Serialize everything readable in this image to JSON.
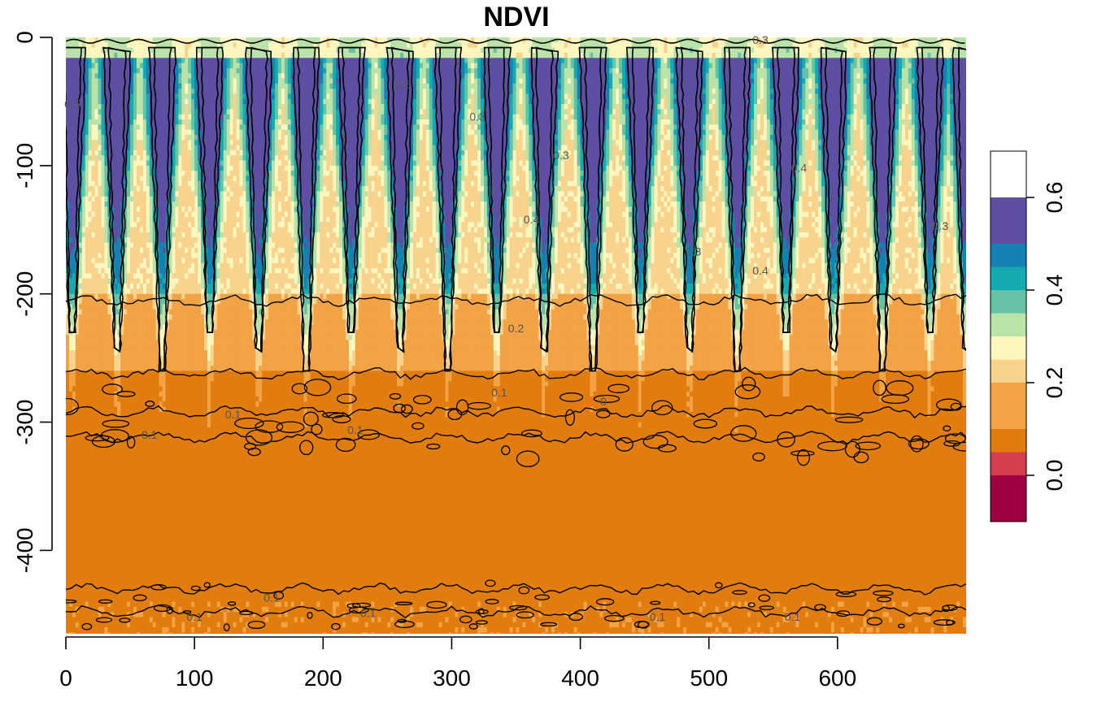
{
  "chart_data": {
    "type": "heatmap",
    "title": "NDVI",
    "xlabel": "",
    "ylabel": "",
    "xlim": [
      0,
      700
    ],
    "ylim": [
      -465,
      0
    ],
    "x_ticks": [
      0,
      100,
      200,
      300,
      400,
      500,
      600
    ],
    "y_ticks": [
      0,
      -100,
      -200,
      -300,
      -400
    ],
    "color_breaks": [
      -0.1,
      0.0,
      0.05,
      0.1,
      0.2,
      0.25,
      0.3,
      0.35,
      0.4,
      0.45,
      0.5,
      0.6,
      0.7
    ],
    "palette": [
      "#9E0142",
      "#D53E4F",
      "#E17D0E",
      "#F2A345",
      "#F7D38D",
      "#FDF6BF",
      "#B9E3A8",
      "#66C2A5",
      "#13ABB0",
      "#1580B2",
      "#5E4FA2"
    ],
    "legend_ticks": [
      0.0,
      0.2,
      0.4,
      0.6
    ],
    "legend_tick_labels": [
      "0.0",
      "0.2",
      "0.4",
      "0.6"
    ],
    "legend_position": "right",
    "contour_levels": [
      0.0,
      0.1,
      0.2,
      0.3,
      0.4,
      0.5
    ],
    "contour_labels": [
      {
        "text": "0.1",
        "x": 65,
        "y": -313
      },
      {
        "text": "0.1",
        "x": 130,
        "y": -297
      },
      {
        "text": "0.1",
        "x": 225,
        "y": -309
      },
      {
        "text": "0.1",
        "x": 337,
        "y": -280
      },
      {
        "text": "0",
        "x": 418,
        "y": -287
      },
      {
        "text": "0.2",
        "x": 350,
        "y": -230
      },
      {
        "text": "0.3",
        "x": 320,
        "y": -65
      },
      {
        "text": "0.3",
        "x": 385,
        "y": -95
      },
      {
        "text": "0.3",
        "x": 488,
        "y": -170
      },
      {
        "text": "0.4",
        "x": 362,
        "y": -145
      },
      {
        "text": "0.4",
        "x": 570,
        "y": -105
      },
      {
        "text": "0.4",
        "x": 540,
        "y": -185
      },
      {
        "text": "0.5",
        "x": 5,
        "y": -55
      },
      {
        "text": "0.5",
        "x": 262,
        "y": -40
      },
      {
        "text": "0.3",
        "x": 680,
        "y": -150
      },
      {
        "text": "0.3",
        "x": 540,
        "y": -5
      },
      {
        "text": "0.1",
        "x": 100,
        "y": -455
      },
      {
        "text": "0.1",
        "x": 160,
        "y": -440
      },
      {
        "text": "0.1",
        "x": 235,
        "y": -452
      },
      {
        "text": "0.1",
        "x": 460,
        "y": -455
      },
      {
        "text": "0.1",
        "x": 565,
        "y": -455
      }
    ],
    "peak_columns_x": [
      5,
      40,
      75,
      112,
      150,
      187,
      222,
      260,
      297,
      335,
      372,
      410,
      447,
      485,
      522,
      560,
      597,
      635,
      672,
      700
    ]
  }
}
